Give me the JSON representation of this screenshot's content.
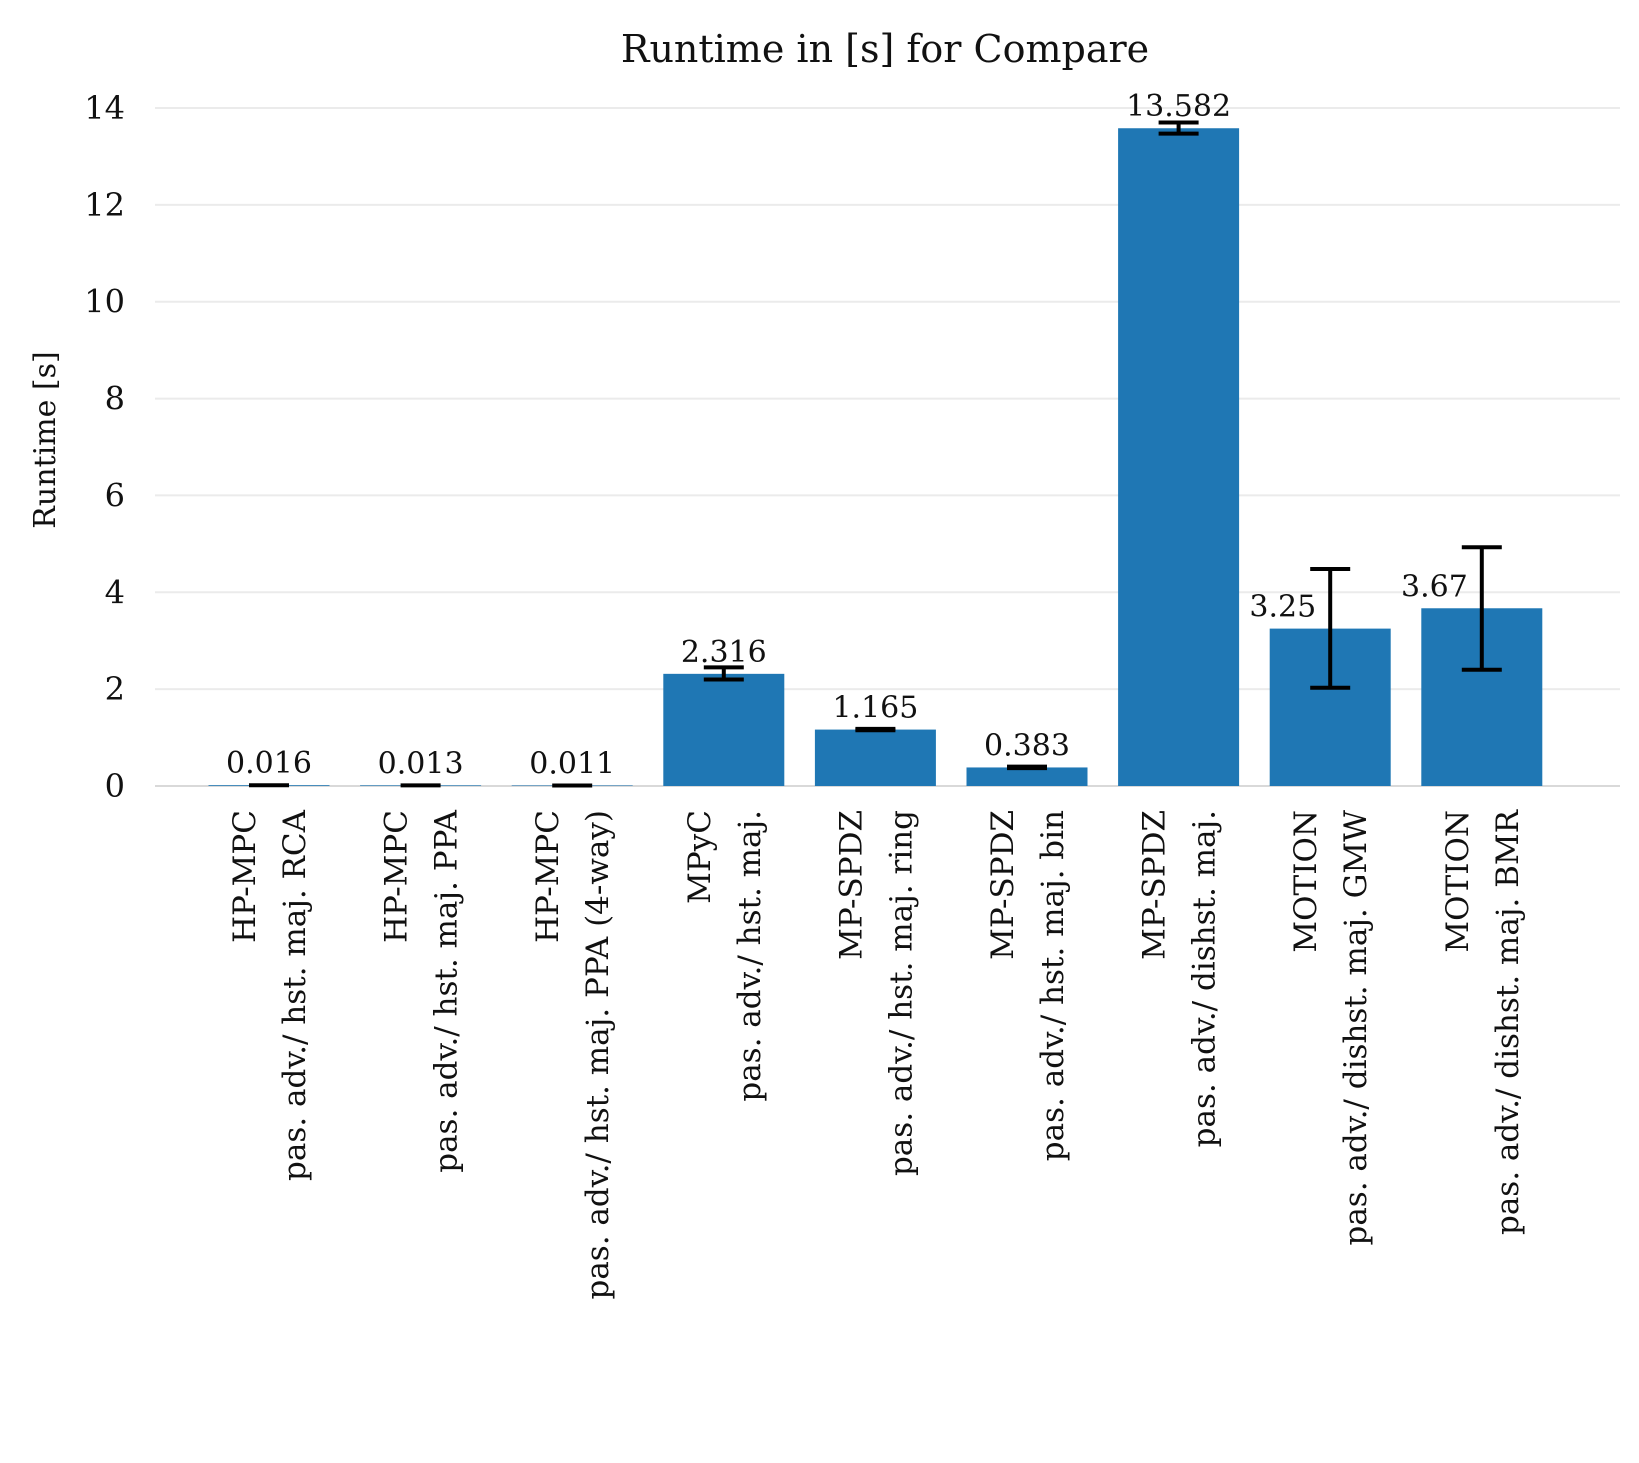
{
  "chart_data": {
    "type": "bar",
    "title": "Runtime in [s] for Compare",
    "xlabel": "",
    "ylabel": "Runtime [s]",
    "ylim": [
      0,
      14
    ],
    "yticks": [
      0,
      2,
      4,
      6,
      8,
      10,
      12,
      14
    ],
    "grid": true,
    "color": "#1f77b4",
    "categories": [
      [
        "HP-MPC",
        "pas. adv./ hst. maj. RCA"
      ],
      [
        "HP-MPC",
        "pas. adv./ hst. maj. PPA"
      ],
      [
        "HP-MPC",
        "pas. adv./ hst. maj. PPA (4-way)"
      ],
      [
        "MPyC",
        "pas. adv./ hst. maj."
      ],
      [
        "MP-SPDZ",
        "pas. adv./ hst. maj. ring"
      ],
      [
        "MP-SPDZ",
        "pas. adv./ hst. maj. bin"
      ],
      [
        "MP-SPDZ",
        "pas. adv./ dishst. maj."
      ],
      [
        "MOTION",
        "pas. adv./ dishst. maj. GMW"
      ],
      [
        "MOTION",
        "pas. adv./ dishst. maj. BMR"
      ]
    ],
    "values": [
      0.016,
      0.013,
      0.011,
      2.316,
      1.165,
      0.383,
      13.582,
      3.25,
      3.67
    ],
    "value_labels": [
      "0.016",
      "0.013",
      "0.011",
      "2.316",
      "1.165",
      "0.383",
      "13.582",
      "3.25",
      "3.67"
    ],
    "error_low": [
      0.016,
      0.013,
      0.011,
      2.2,
      1.15,
      0.37,
      13.47,
      2.03,
      2.4
    ],
    "error_high": [
      0.016,
      0.013,
      0.011,
      2.45,
      1.18,
      0.4,
      13.7,
      4.48,
      4.93
    ]
  }
}
